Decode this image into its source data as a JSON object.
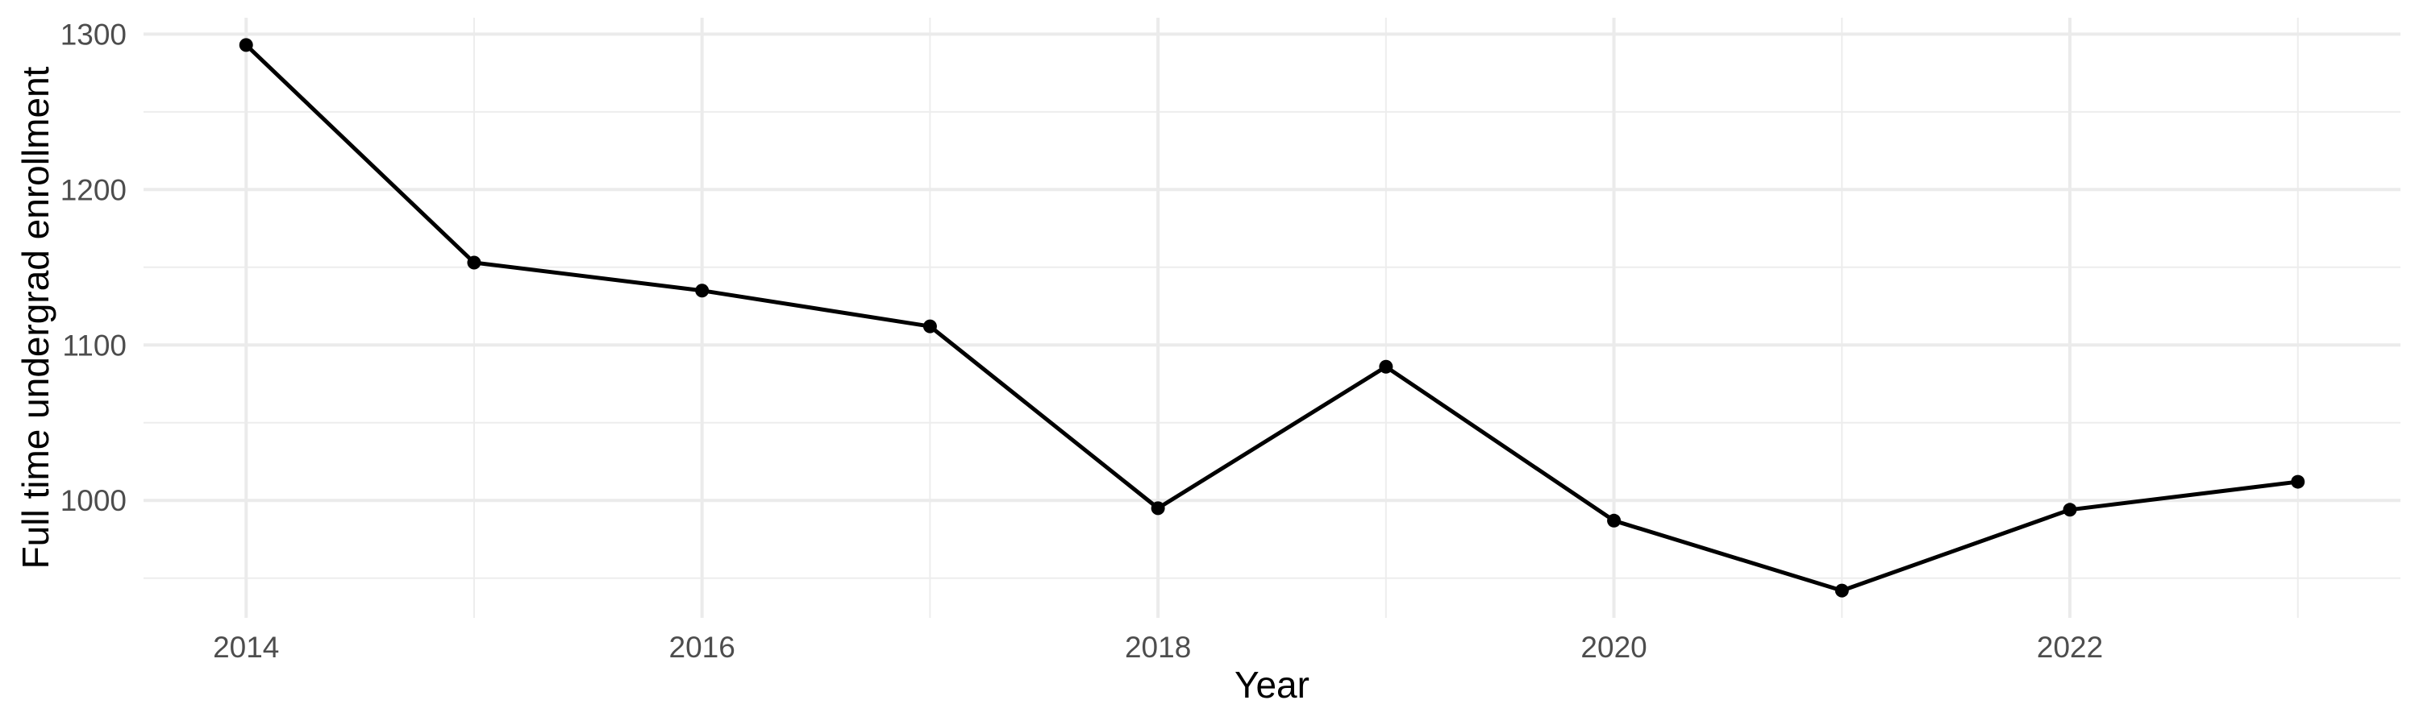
{
  "chart_data": {
    "type": "line",
    "title": "",
    "xlabel": "Year",
    "ylabel": "Full time undergrad enrollment",
    "x": [
      2014,
      2015,
      2016,
      2017,
      2018,
      2019,
      2020,
      2021,
      2022,
      2023
    ],
    "values": [
      1293,
      1153,
      1135,
      1112,
      995,
      1086,
      987,
      942,
      994,
      1012
    ],
    "xlim": [
      2013.55,
      2023.45
    ],
    "ylim": [
      924.45,
      1310.55
    ],
    "x_major_ticks": [
      2014,
      2016,
      2018,
      2020,
      2022
    ],
    "x_minor_ticks": [
      2015,
      2017,
      2019,
      2021,
      2023
    ],
    "y_major_ticks": [
      1000,
      1100,
      1200,
      1300
    ],
    "y_minor_ticks": [
      950,
      1050,
      1150,
      1250
    ],
    "grid": "major+minor",
    "legend": "none",
    "colors": {
      "line": "#000000",
      "point": "#000000",
      "grid_major": "#EBEBEB",
      "grid_minor": "#EDEDED",
      "tick_label": "#4D4D4D",
      "axis_title": "#000000",
      "background": "#FFFFFF"
    }
  }
}
